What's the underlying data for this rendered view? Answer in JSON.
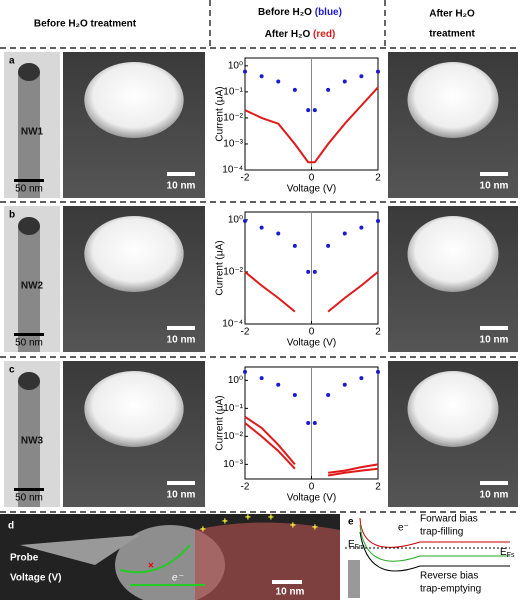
{
  "header": {
    "before": "Before H₂O treatment",
    "mid_before": "Before H₂O",
    "mid_blue": "(blue)",
    "mid_after": "After H₂O",
    "mid_red": "(red)",
    "after_1": "After H₂O",
    "after_2": "treatment"
  },
  "rows": [
    {
      "panel": "a",
      "nanowire": "NW1",
      "tem_scale": "50 nm",
      "before_scale": "10 nm",
      "after_scale": "10 nm"
    },
    {
      "panel": "b",
      "nanowire": "NW2",
      "tem_scale": "50 nm",
      "before_scale": "10 nm",
      "after_scale": "10 nm"
    },
    {
      "panel": "c",
      "nanowire": "NW3",
      "tem_scale": "50 nm",
      "before_scale": "10 nm",
      "after_scale": "10 nm"
    }
  ],
  "chart_data": [
    {
      "type": "line",
      "xlabel": "Voltage (V)",
      "ylabel": "Current (μA)",
      "yscale": "log",
      "xlim": [
        -2,
        2
      ],
      "ylim": [
        0.0001,
        2
      ],
      "xticks": [
        -2,
        0,
        2
      ],
      "yticks": [
        {
          "value": 1,
          "label": "10⁰"
        },
        {
          "value": 0.1,
          "label": "10⁻¹"
        },
        {
          "value": 0.01,
          "label": "10⁻²"
        },
        {
          "value": 0.001,
          "label": "10⁻³"
        },
        {
          "value": 0.0001,
          "label": "10⁻⁴"
        }
      ],
      "x": [
        -2,
        -1.5,
        -1,
        -0.5,
        -0.1,
        0.1,
        0.5,
        1,
        1.5,
        2
      ],
      "series": [
        {
          "color": "#1a1ad0",
          "style": "markers",
          "values": [
            0.6,
            0.4,
            0.25,
            0.12,
            0.02,
            0.02,
            0.12,
            0.25,
            0.4,
            0.6
          ]
        },
        {
          "color": "#e0191b",
          "style": "line",
          "values": [
            0.02,
            0.01,
            0.006,
            0.001,
            0.0002,
            0.0002,
            0.001,
            0.006,
            0.03,
            0.15
          ]
        }
      ]
    },
    {
      "type": "line",
      "xlabel": "Voltage (V)",
      "ylabel": "Current (μA)",
      "yscale": "log",
      "xlim": [
        -2,
        2
      ],
      "ylim": [
        0.0001,
        2
      ],
      "xticks": [
        -2,
        0,
        2
      ],
      "yticks": [
        {
          "value": 1,
          "label": "10⁰"
        },
        {
          "value": 0.01,
          "label": "10⁻²"
        },
        {
          "value": 0.0001,
          "label": "10⁻⁴"
        }
      ],
      "x": [
        -2,
        -1.5,
        -1,
        -0.5,
        -0.1,
        0.1,
        0.5,
        1,
        1.5,
        2
      ],
      "series": [
        {
          "color": "#1a1ad0",
          "style": "markers",
          "values": [
            0.9,
            0.5,
            0.3,
            0.1,
            0.01,
            0.01,
            0.1,
            0.3,
            0.5,
            0.9
          ]
        },
        {
          "color": "#e0191b",
          "style": "line",
          "values": [
            0.01,
            0.003,
            0.001,
            0.0003,
            null,
            null,
            0.0003,
            0.001,
            0.003,
            0.01
          ]
        }
      ]
    },
    {
      "type": "line",
      "xlabel": "Voltage (V)",
      "ylabel": "Current (μA)",
      "yscale": "log",
      "xlim": [
        -2,
        2
      ],
      "ylim": [
        0.0003,
        3
      ],
      "xticks": [
        -2,
        0,
        2
      ],
      "yticks": [
        {
          "value": 1,
          "label": "10⁰"
        },
        {
          "value": 0.1,
          "label": "10⁻¹"
        },
        {
          "value": 0.01,
          "label": "10⁻²"
        },
        {
          "value": 0.001,
          "label": "10⁻³"
        }
      ],
      "x": [
        -2,
        -1.5,
        -1,
        -0.5,
        -0.1,
        0.1,
        0.5,
        1,
        1.5,
        2
      ],
      "series": [
        {
          "color": "#1a1ad0",
          "style": "markers",
          "values": [
            2,
            1.2,
            0.7,
            0.3,
            0.03,
            0.03,
            0.3,
            0.7,
            1.2,
            2
          ]
        },
        {
          "color": "#e0191b",
          "style": "line",
          "values": [
            0.05,
            0.02,
            0.005,
            0.001,
            null,
            null,
            0.0004,
            0.0005,
            0.0006,
            0.0007
          ]
        },
        {
          "color": "#e0191b",
          "style": "line",
          "values": [
            0.03,
            0.01,
            0.003,
            0.0007,
            null,
            null,
            0.0005,
            0.0006,
            0.0008,
            0.001
          ]
        }
      ]
    }
  ],
  "panel_d": {
    "panel": "d",
    "probe": "Probe",
    "voltage": "Voltage (V)",
    "electron": "e⁻",
    "scale": "10 nm",
    "plus": "+"
  },
  "panel_e": {
    "panel": "e",
    "electron": "e⁻",
    "forward_1": "Forward bias",
    "forward_2": "trap-filling",
    "efm_e": "E",
    "efm_sub": "Fm",
    "efs_e": "E",
    "efs_sub": "Fs",
    "reverse_1": "Reverse bias",
    "reverse_2": "trap-emptying"
  }
}
